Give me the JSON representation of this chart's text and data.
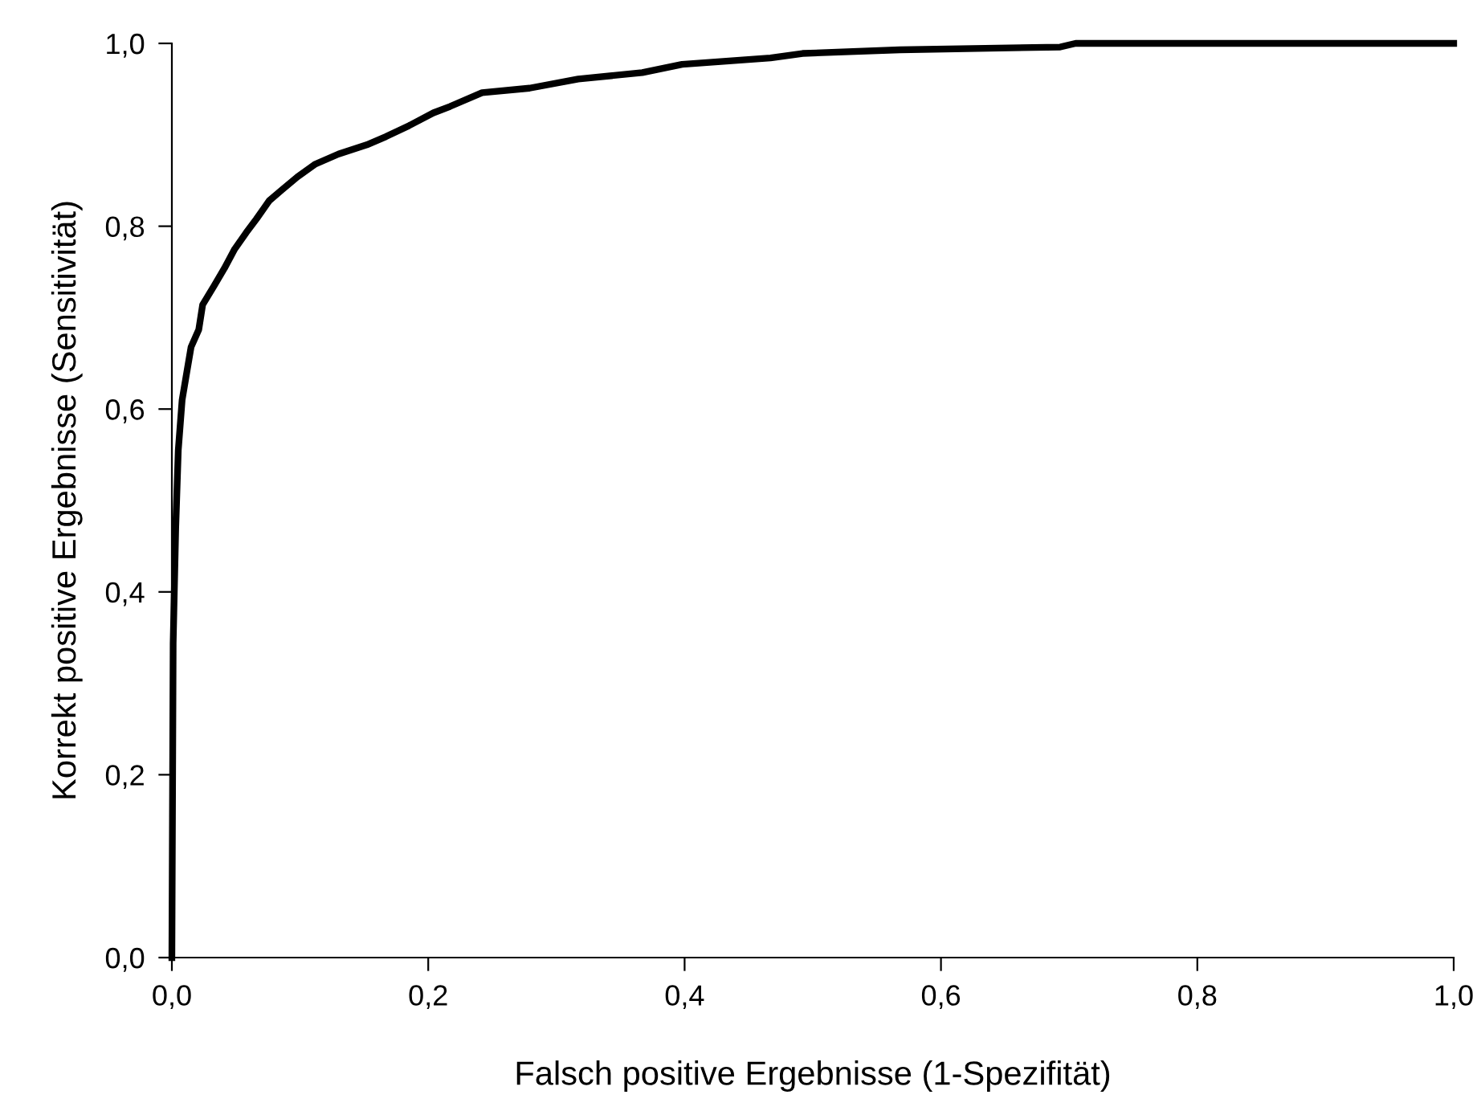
{
  "chart_data": {
    "type": "line",
    "xlabel": "Falsch positive Ergebnisse (1-Spezifität)",
    "ylabel": "Korrekt positive Ergebnisse (Sensitivität)",
    "x": [
      0,
      0.001,
      0.003,
      0.005,
      0.008,
      0.011,
      0.015,
      0.021,
      0.024,
      0.033,
      0.041,
      0.049,
      0.058,
      0.066,
      0.076,
      0.086,
      0.098,
      0.112,
      0.13,
      0.152,
      0.167,
      0.185,
      0.204,
      0.217,
      0.242,
      0.279,
      0.317,
      0.367,
      0.398,
      0.467,
      0.492,
      0.568,
      0.693,
      0.705,
      1.0
    ],
    "series": [
      {
        "color": "#000000",
        "values": [
          0,
          0.344,
          0.47,
          0.555,
          0.61,
          0.635,
          0.668,
          0.687,
          0.714,
          0.735,
          0.754,
          0.775,
          0.793,
          0.808,
          0.828,
          0.84,
          0.854,
          0.868,
          0.879,
          0.889,
          0.898,
          0.91,
          0.924,
          0.931,
          0.946,
          0.951,
          0.961,
          0.968,
          0.977,
          0.984,
          0.989,
          0.993,
          0.996,
          1.0,
          1.0
        ]
      }
    ],
    "xlim": [
      0,
      1
    ],
    "ylim": [
      0,
      1
    ],
    "xticks": [
      {
        "value": 0,
        "label": "0,0"
      },
      {
        "value": 0.2,
        "label": "0,2"
      },
      {
        "value": 0.4,
        "label": "0,4"
      },
      {
        "value": 0.6,
        "label": "0,6"
      },
      {
        "value": 0.8,
        "label": "0,8"
      },
      {
        "value": 1,
        "label": "1,0"
      }
    ],
    "yticks": [
      {
        "value": 0,
        "label": "0,0"
      },
      {
        "value": 0.2,
        "label": "0,2"
      },
      {
        "value": 0.4,
        "label": "0,4"
      },
      {
        "value": 0.6,
        "label": "0,6"
      },
      {
        "value": 0.8,
        "label": "0,8"
      },
      {
        "value": 1,
        "label": "1,0"
      }
    ],
    "grid": false,
    "legend": false,
    "marker": "none",
    "line_style": "solid"
  }
}
